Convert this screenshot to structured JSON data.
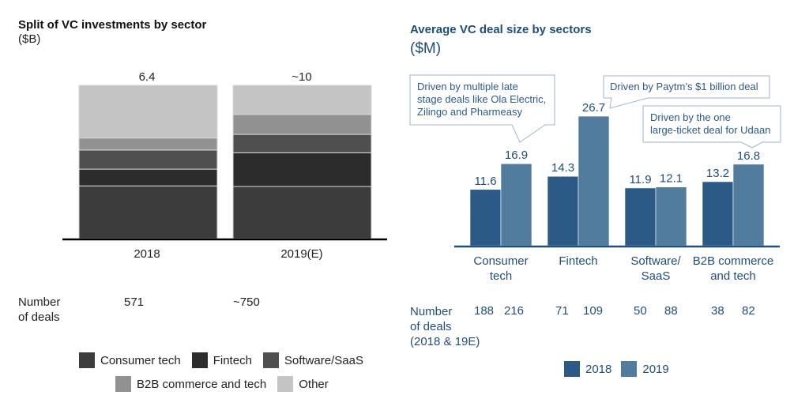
{
  "chart_data": [
    {
      "type": "bar",
      "stacked": true,
      "title": "Split of VC investments by sector",
      "unit_label": "($B)",
      "categories": [
        "2018",
        "2019(E)"
      ],
      "totals_labels": [
        "6.4",
        "~10"
      ],
      "totals": [
        6.4,
        10
      ],
      "series": [
        {
          "name": "Consumer tech",
          "color": "#3c3c3c",
          "values": [
            2.2,
            3.4
          ]
        },
        {
          "name": "Fintech",
          "color": "#2c2c2c",
          "values": [
            0.7,
            2.2
          ]
        },
        {
          "name": "Software/SaaS",
          "color": "#4f4f4f",
          "values": [
            0.8,
            1.2
          ]
        },
        {
          "name": "B2B commerce and tech",
          "color": "#919191",
          "values": [
            0.5,
            1.3
          ]
        },
        {
          "name": "Other",
          "color": "#c4c4c4",
          "values": [
            2.2,
            1.9
          ]
        }
      ],
      "deals": {
        "label_line1": "Number",
        "label_line2": "of deals",
        "values": [
          "571",
          "~750"
        ]
      },
      "legend_position": "bottom"
    },
    {
      "type": "bar",
      "title": "Average VC deal size by sectors",
      "unit_label": "($M)",
      "categories": [
        {
          "line1": "Consumer",
          "line2": "tech"
        },
        {
          "line1": "Fintech",
          "line2": ""
        },
        {
          "line1": "Software/",
          "line2": "SaaS"
        },
        {
          "line1": "B2B commerce",
          "line2": "and tech"
        }
      ],
      "series": [
        {
          "name": "2018",
          "color": "#2b5a87",
          "values": [
            11.6,
            14.3,
            11.9,
            13.2
          ]
        },
        {
          "name": "2019",
          "color": "#527c9e",
          "values": [
            16.9,
            26.7,
            12.1,
            16.8
          ]
        }
      ],
      "ylim": [
        0,
        27
      ],
      "deals": {
        "label_lines": [
          "Number",
          "of deals",
          "(2018 & 19E)"
        ],
        "values": [
          [
            "188",
            "216"
          ],
          [
            "71",
            "109"
          ],
          [
            "50",
            "88"
          ],
          [
            "38",
            "82"
          ]
        ]
      },
      "callouts": [
        {
          "lines": [
            "Driven by multiple late",
            "stage deals like Ola Electric,",
            "Zilingo and Pharmeasy"
          ],
          "target": "Consumer tech 2019"
        },
        {
          "lines": [
            "Driven by Paytm’s $1 billion deal"
          ],
          "target": "Fintech 2019"
        },
        {
          "lines": [
            "Driven by the one",
            "large-ticket deal for Udaan"
          ],
          "target": "B2B commerce and tech 2019"
        }
      ],
      "legend_position": "bottom"
    }
  ]
}
